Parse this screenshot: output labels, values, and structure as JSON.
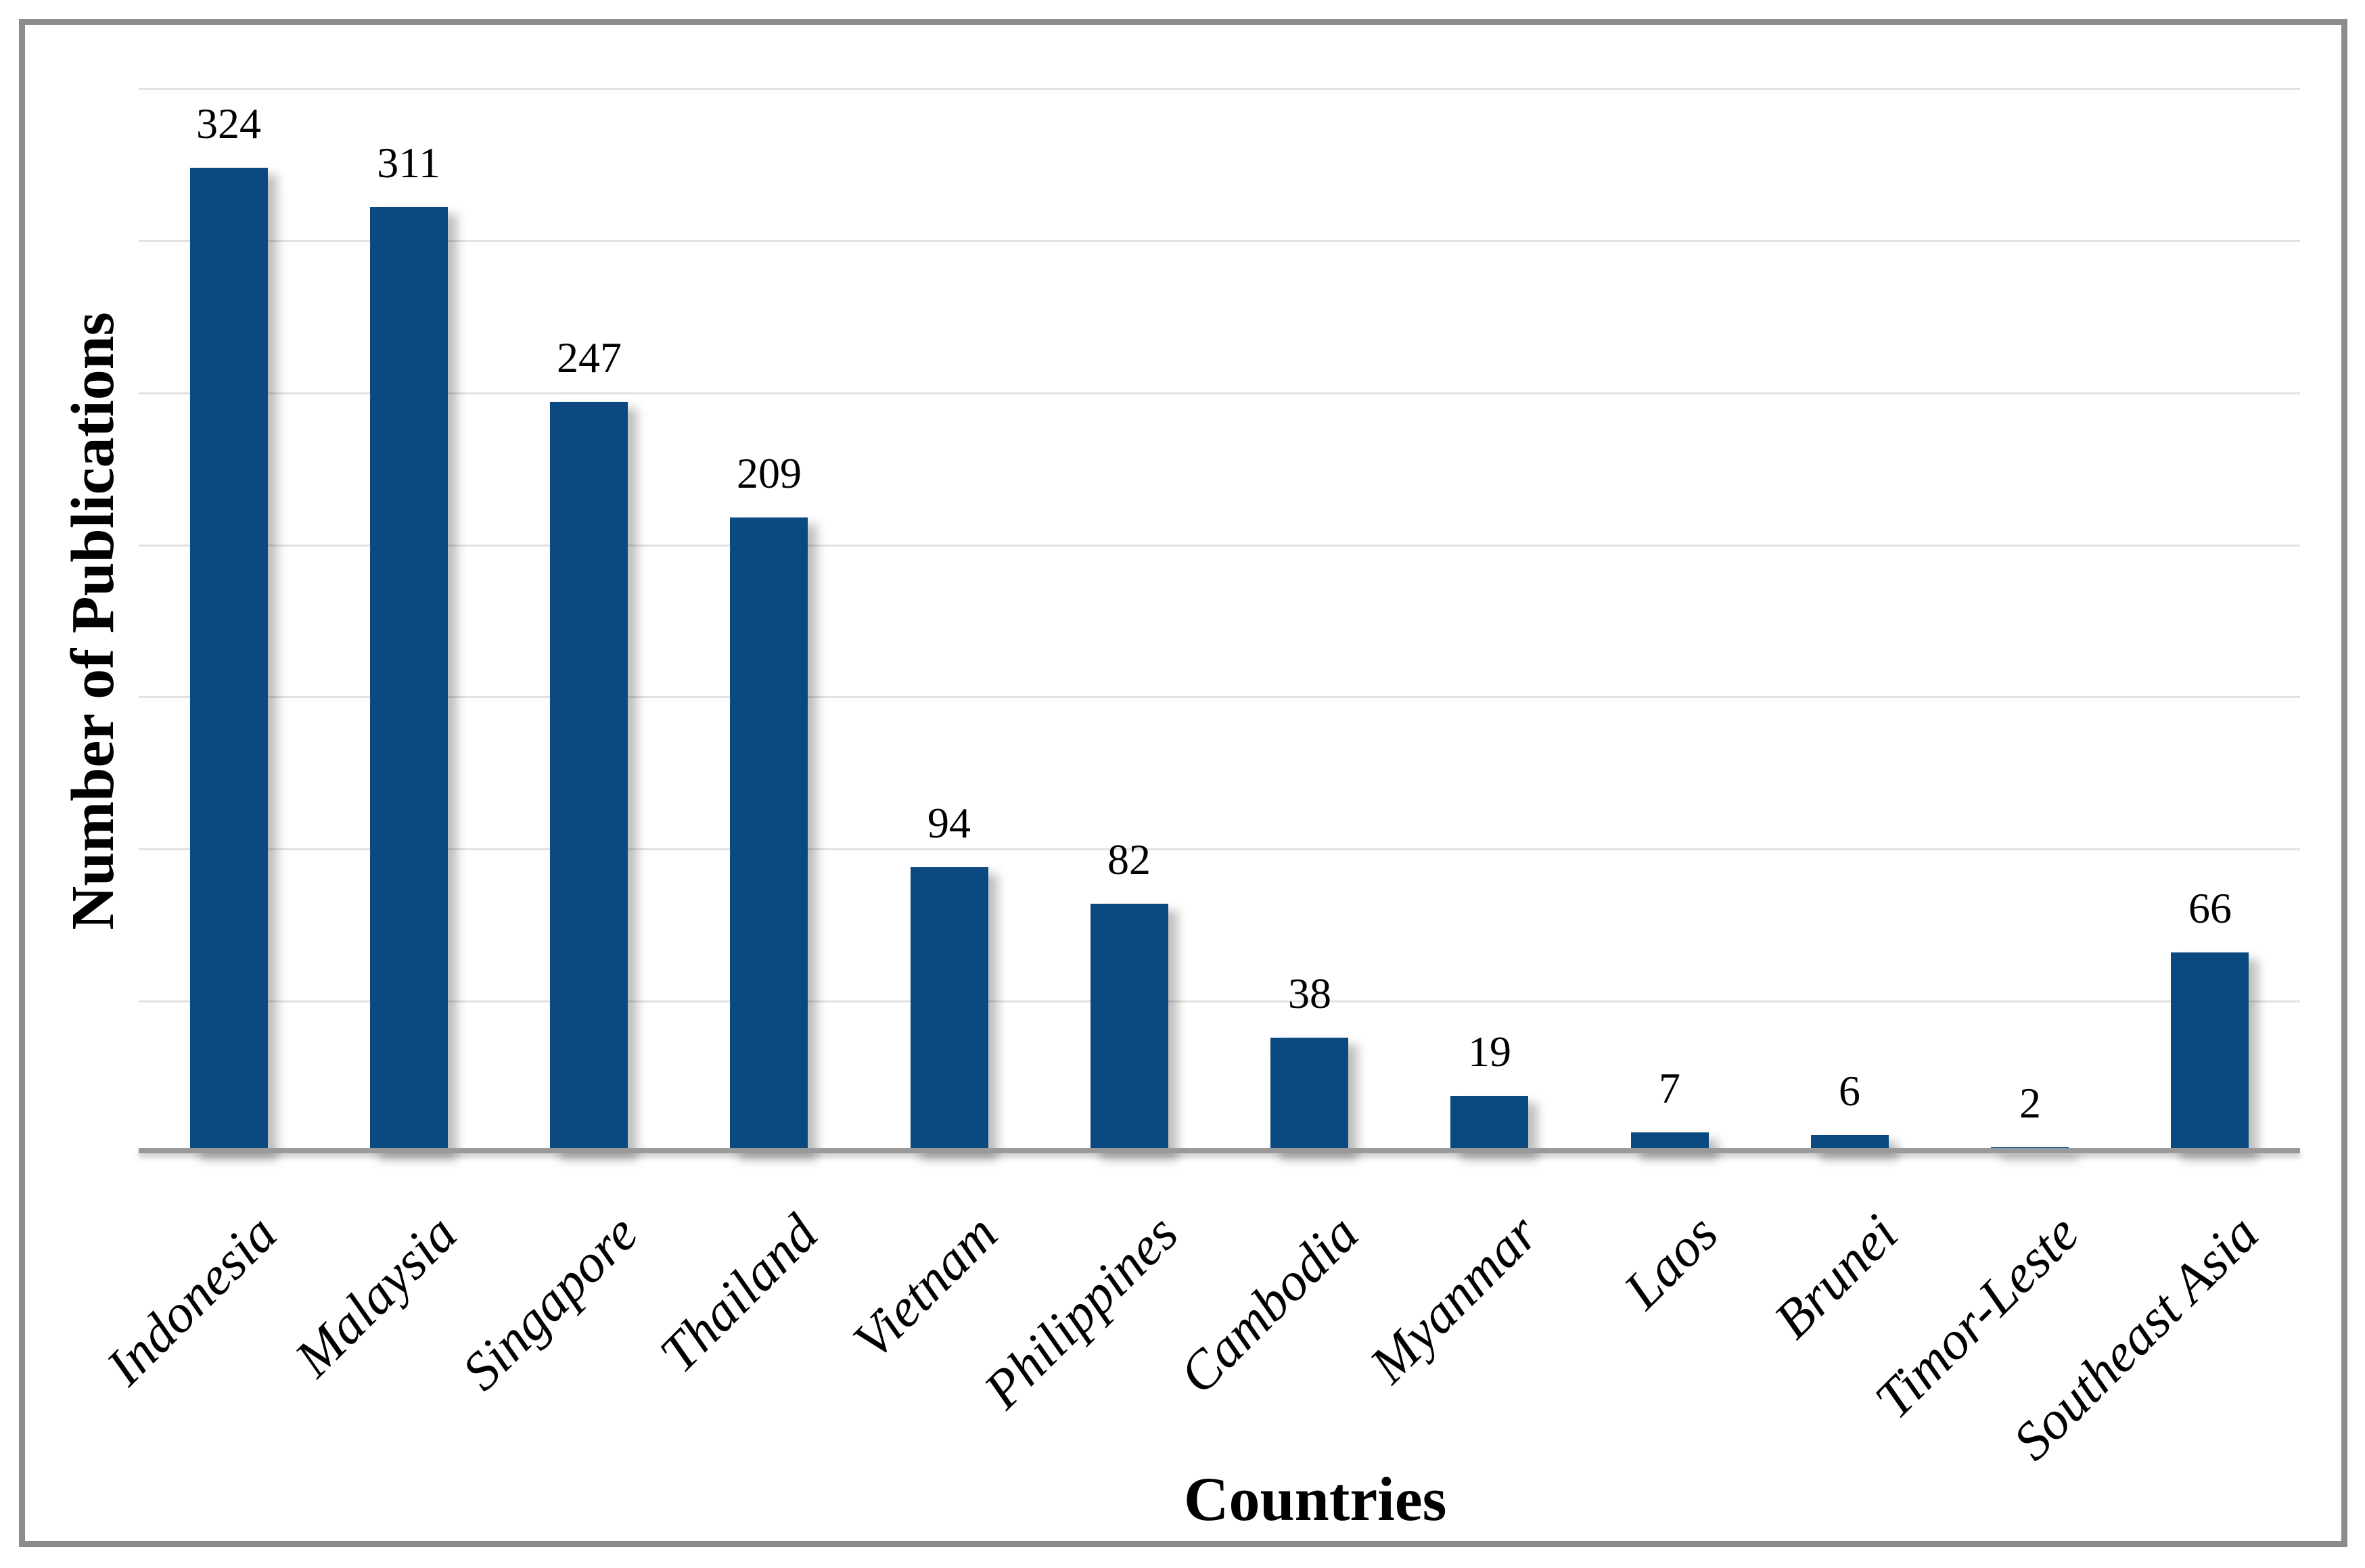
{
  "chart_data": {
    "type": "bar",
    "categories": [
      "Indonesia",
      "Malaysia",
      "Singapore",
      "Thailand",
      "Vietnam",
      "Philippines",
      "Cambodia",
      "Myanmar",
      "Laos",
      "Brunei",
      "Timor-Leste",
      "Southeast Asia"
    ],
    "values": [
      324,
      311,
      247,
      209,
      94,
      82,
      38,
      19,
      7,
      6,
      2,
      66
    ],
    "title": "",
    "xlabel": "Countries",
    "ylabel": "Number of Publications",
    "ylim": [
      0,
      350
    ],
    "gridline_step": 50,
    "grid": true,
    "legend_position": "none",
    "data_labels": true,
    "bar_color": "#0B4A80",
    "gridline_color": "#E2E2E2",
    "axis_line_color": "#9A9A9A",
    "frame_border_color": "#8C8C8C",
    "text_color": "#000000"
  }
}
